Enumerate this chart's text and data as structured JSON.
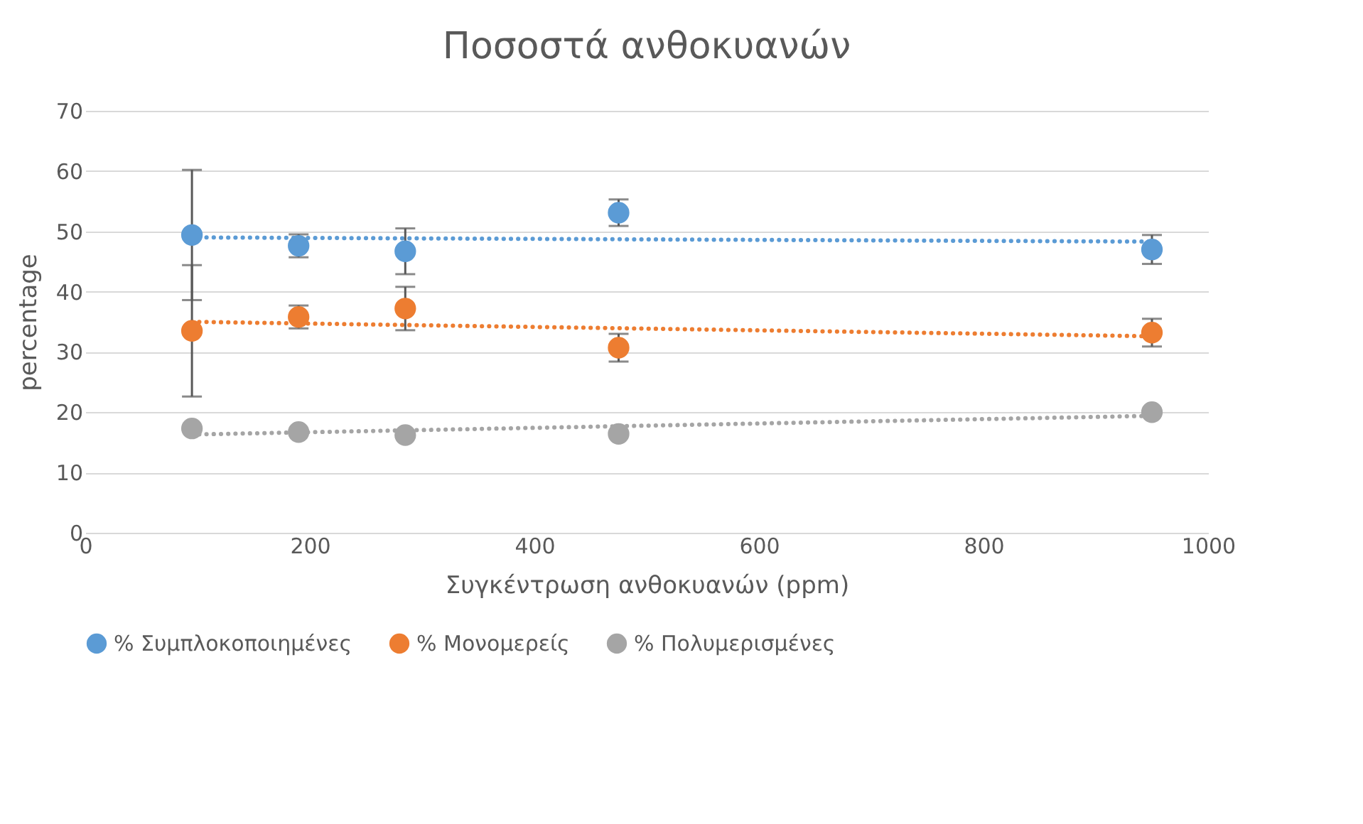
{
  "chart_data": {
    "type": "scatter",
    "title": "Ποσοστά ανθοκυανών",
    "xlabel": "Συγκέντρωση ανθοκυανών (ppm)",
    "ylabel": "percentage",
    "xlim": [
      0,
      1000
    ],
    "xticks": [
      0,
      200,
      400,
      600,
      800,
      1000
    ],
    "ylim": [
      0,
      70
    ],
    "yticks": [
      0,
      10,
      20,
      30,
      40,
      50,
      60,
      70
    ],
    "grid": "y",
    "legend": "bottom",
    "series": [
      {
        "name": "% Συμπλοκοποιημένες",
        "color": "#5b9bd5",
        "x": [
          95,
          190,
          285,
          475,
          950
        ],
        "marker": "circle",
        "values": [
          49.4,
          47.6,
          46.7,
          53.1,
          47.0
        ],
        "errors": [
          10.8,
          1.9,
          3.8,
          2.2,
          2.4
        ]
      },
      {
        "name": "% Μονομερείς",
        "color": "#ed7d31",
        "x": [
          95,
          190,
          285,
          475,
          950
        ],
        "marker": "circle",
        "values": [
          33.5,
          35.8,
          37.2,
          30.7,
          33.2
        ],
        "errors": [
          10.9,
          1.9,
          3.6,
          2.3,
          2.3
        ]
      },
      {
        "name": "% Πολυμερισμένες",
        "color": "#a5a5a5",
        "x": [
          95,
          190,
          285,
          475,
          950
        ],
        "marker": "circle",
        "values": [
          17.3,
          16.7,
          16.2,
          16.4,
          20.0
        ]
      },
      {
        "type": "line",
        "line_style": "dotted",
        "marker": "none",
        "color": "#5b9bd5",
        "x": [
          95,
          950
        ],
        "values": [
          49.0,
          48.3
        ]
      },
      {
        "type": "line",
        "line_style": "dotted",
        "marker": "none",
        "color": "#ed7d31",
        "x": [
          95,
          950
        ],
        "values": [
          35.0,
          32.6
        ]
      },
      {
        "type": "line",
        "line_style": "dotted",
        "marker": "none",
        "color": "#a5a5a5",
        "x": [
          95,
          950
        ],
        "values": [
          16.3,
          19.4
        ]
      }
    ]
  }
}
